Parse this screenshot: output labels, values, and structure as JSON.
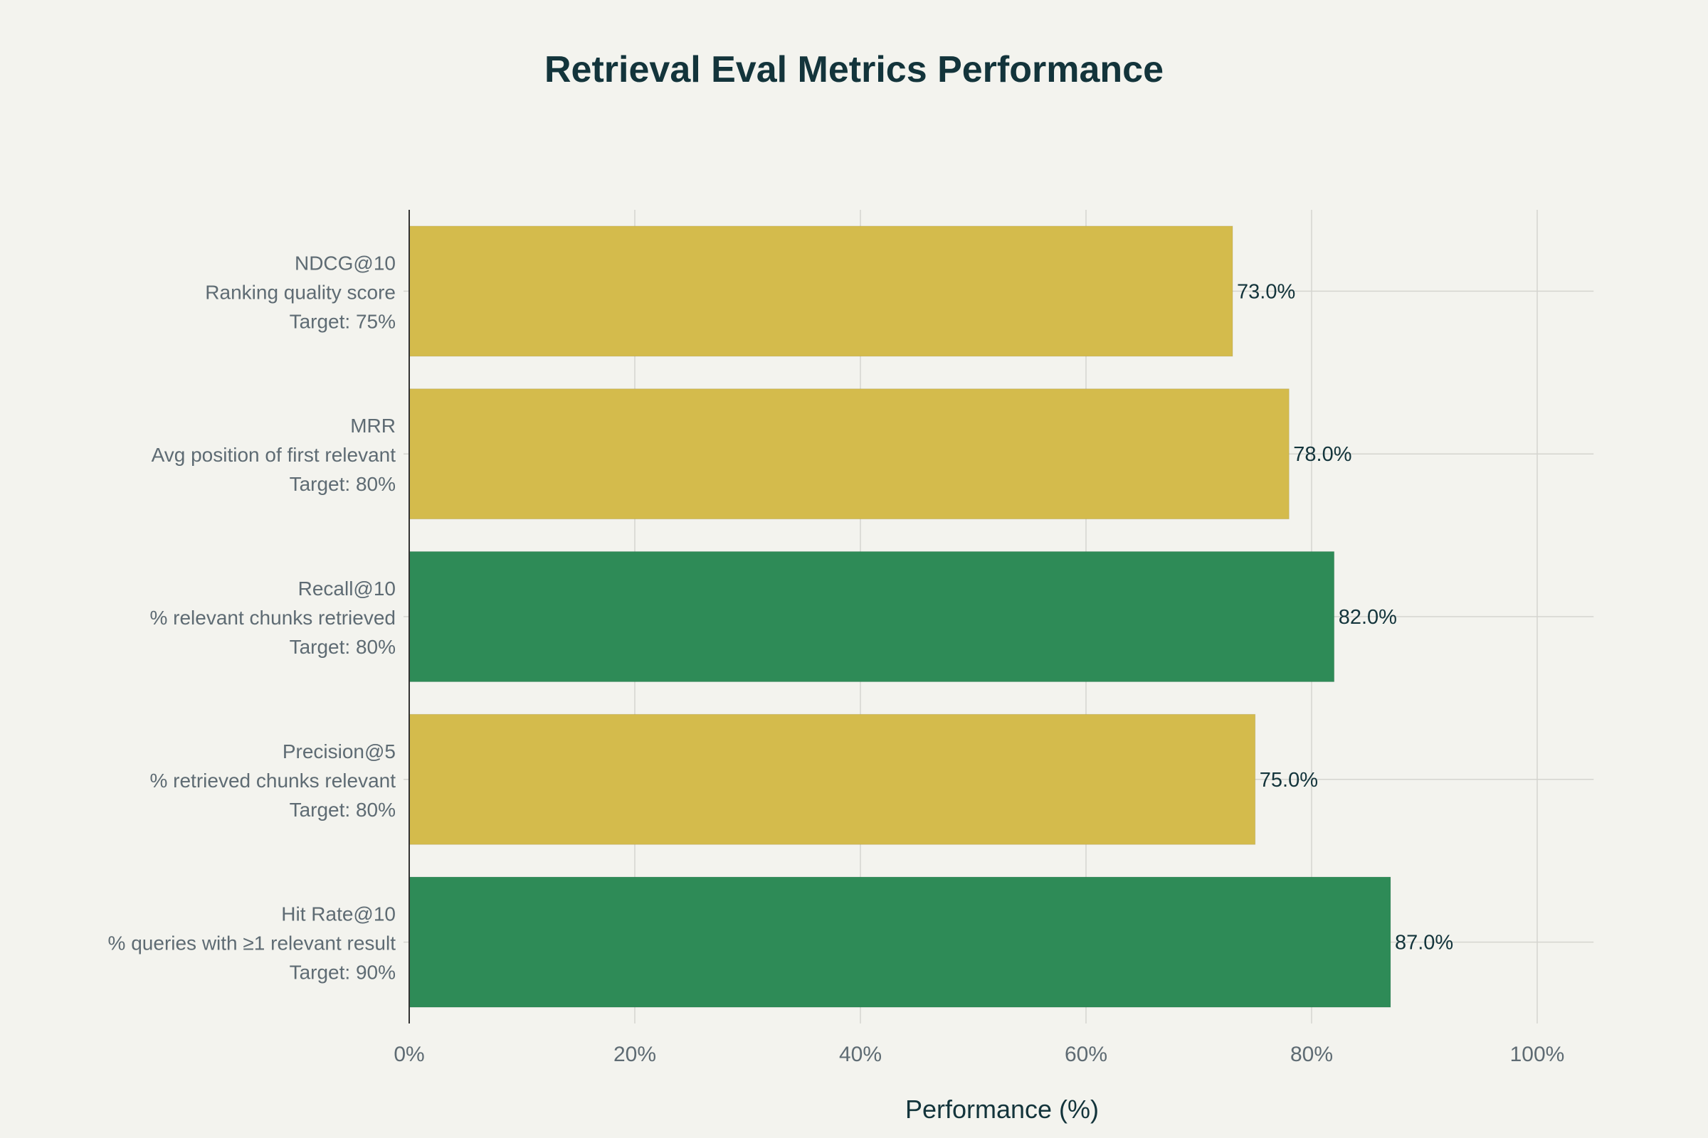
{
  "chart_data": {
    "type": "bar",
    "orientation": "horizontal",
    "title": "Retrieval Eval Metrics Performance",
    "xlabel": "Performance (%)",
    "ylabel": "",
    "xlim": [
      0,
      105
    ],
    "xticks": [
      0,
      20,
      40,
      60,
      80,
      100
    ],
    "xtick_labels": [
      "0%",
      "20%",
      "40%",
      "60%",
      "80%",
      "100%"
    ],
    "grid": true,
    "categories": [
      {
        "name": "NDCG@10",
        "description": "Ranking quality score",
        "target": "Target: 75%"
      },
      {
        "name": "MRR",
        "description": "Avg position of first relevant",
        "target": "Target: 80%"
      },
      {
        "name": "Recall@10",
        "description": "% relevant chunks retrieved",
        "target": "Target: 80%"
      },
      {
        "name": "Precision@5",
        "description": "% retrieved chunks relevant",
        "target": "Target: 80%"
      },
      {
        "name": "Hit Rate@10",
        "description": "% queries with ≥1 relevant result",
        "target": "Target: 90%"
      }
    ],
    "values": [
      73.0,
      78.0,
      82.0,
      75.0,
      87.0
    ],
    "data_labels": [
      "73.0%",
      "78.0%",
      "82.0%",
      "75.0%",
      "87.0%"
    ],
    "bar_status": [
      "below",
      "below",
      "met",
      "below",
      "below"
    ],
    "colors": {
      "gold": "#D4BB4C",
      "green": "#2E8B57",
      "background": "#F3F3EE"
    },
    "bar_colors": [
      "#D4BB4C",
      "#D4BB4C",
      "#2E8B57",
      "#D4BB4C",
      "#2E8B57"
    ]
  }
}
